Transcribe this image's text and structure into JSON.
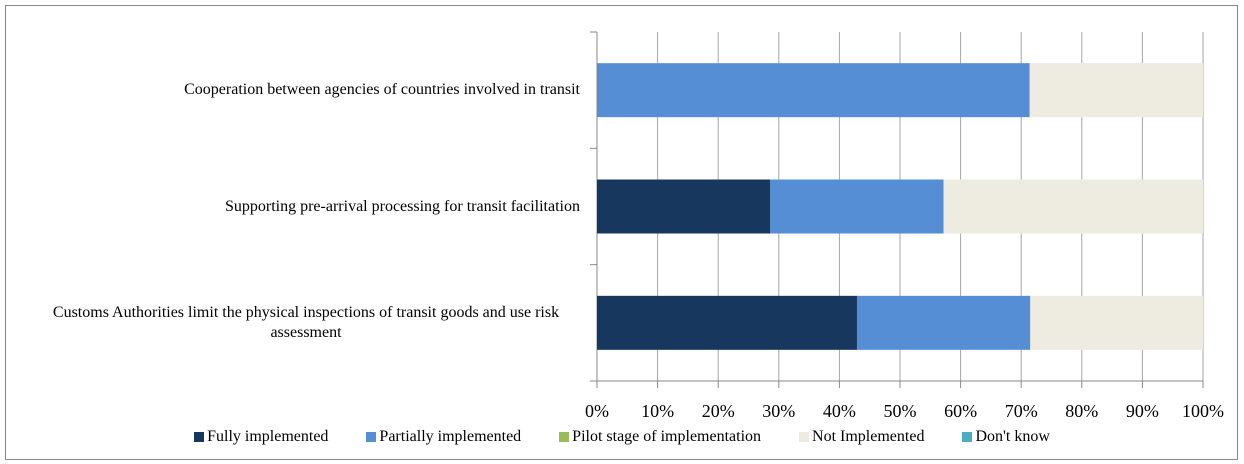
{
  "chart_data": {
    "type": "stacked_barh",
    "categories": [
      "Cooperation between agencies of countries involved in transit",
      "Supporting pre-arrival processing for transit  facilitation",
      "Customs Authorities limit the physical inspections of transit goods and use risk assessment"
    ],
    "series": [
      {
        "name": "Fully implemented",
        "color": "#17375e",
        "values": [
          0,
          28.6,
          42.9
        ]
      },
      {
        "name": "Partially implemented",
        "color": "#558ed5",
        "values": [
          71.4,
          28.6,
          28.6
        ]
      },
      {
        "name": "Pilot stage of implementation",
        "color": "#9bbb59",
        "values": [
          0,
          0,
          0
        ]
      },
      {
        "name": "Not Implemented",
        "color": "#eeece1",
        "values": [
          28.6,
          42.8,
          28.5
        ]
      },
      {
        "name": "Don't know",
        "color": "#4bacc6",
        "values": [
          0,
          0,
          0
        ]
      }
    ],
    "xlim": [
      0,
      100
    ],
    "xticks": [
      {
        "value": 0,
        "label": "0%"
      },
      {
        "value": 10,
        "label": "10%"
      },
      {
        "value": 20,
        "label": "20%"
      },
      {
        "value": 30,
        "label": "30%"
      },
      {
        "value": 40,
        "label": "40%"
      },
      {
        "value": 50,
        "label": "50%"
      },
      {
        "value": 60,
        "label": "60%"
      },
      {
        "value": 70,
        "label": "70%"
      },
      {
        "value": 80,
        "label": "80%"
      },
      {
        "value": 90,
        "label": "90%"
      },
      {
        "value": 100,
        "label": "100%"
      }
    ],
    "grid": true,
    "legend": "bottom"
  }
}
